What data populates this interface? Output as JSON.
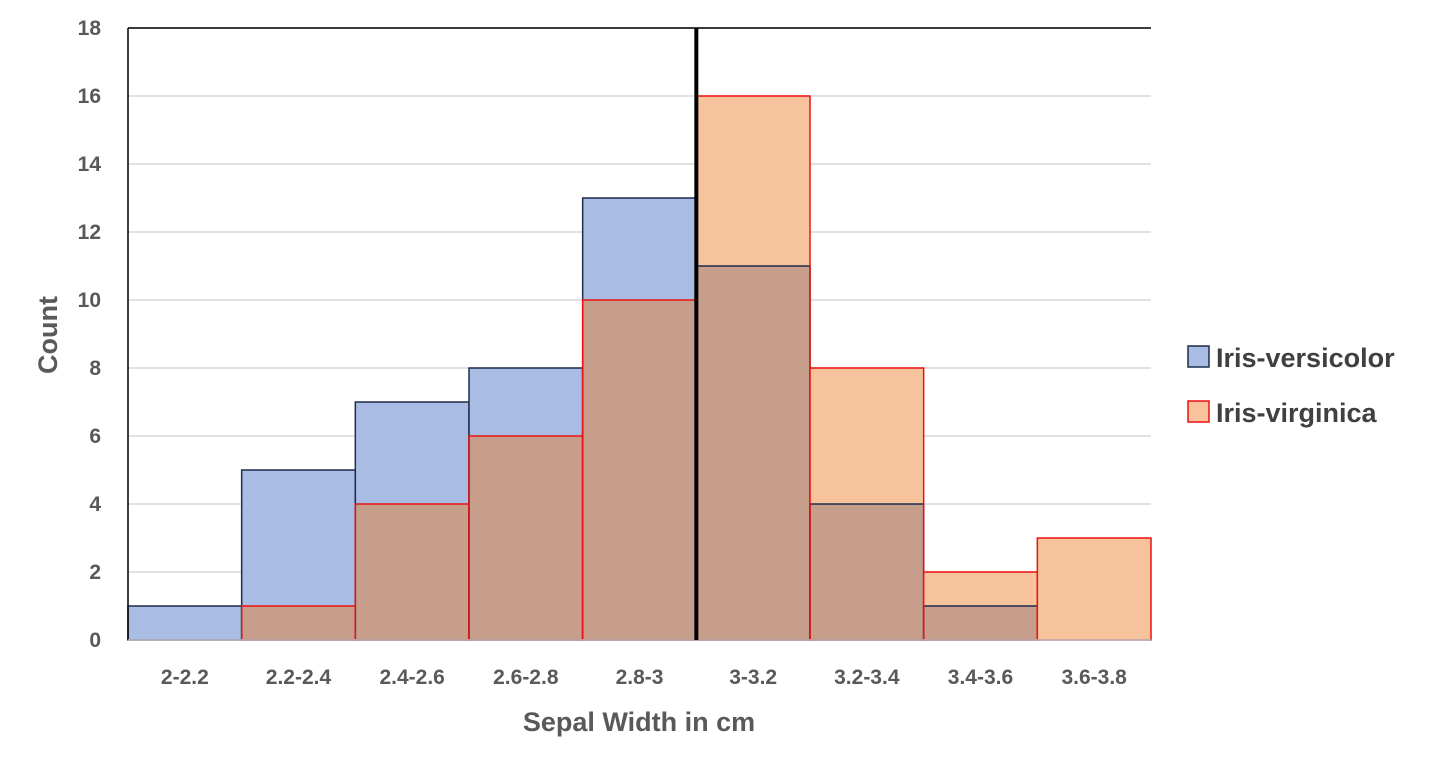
{
  "chart_data": {
    "type": "bar",
    "title": "",
    "xlabel": "Sepal Width in cm",
    "ylabel": "Count",
    "ylim": [
      0,
      18
    ],
    "yticks": [
      0,
      2,
      4,
      6,
      8,
      10,
      12,
      14,
      16,
      18
    ],
    "categories": [
      "2-2.2",
      "2.2-2.4",
      "2.4-2.6",
      "2.6-2.8",
      "2.8-3",
      "3-3.2",
      "3.2-3.4",
      "3.4-3.6",
      "3.6-3.8"
    ],
    "series": [
      {
        "name": "Iris-versicolor",
        "values": [
          1,
          5,
          7,
          8,
          13,
          11,
          4,
          1,
          0
        ],
        "fill": "#4472c4",
        "stroke": "#1f2d4d"
      },
      {
        "name": "Iris-virginica",
        "values": [
          0,
          1,
          4,
          6,
          10,
          16,
          8,
          2,
          3
        ],
        "fill": "#f4b183",
        "stroke": "#ee1111"
      }
    ],
    "overlap_color": "#c79d8b",
    "divider_at_category_boundary": "3",
    "grid": true,
    "legend_position": "right"
  }
}
